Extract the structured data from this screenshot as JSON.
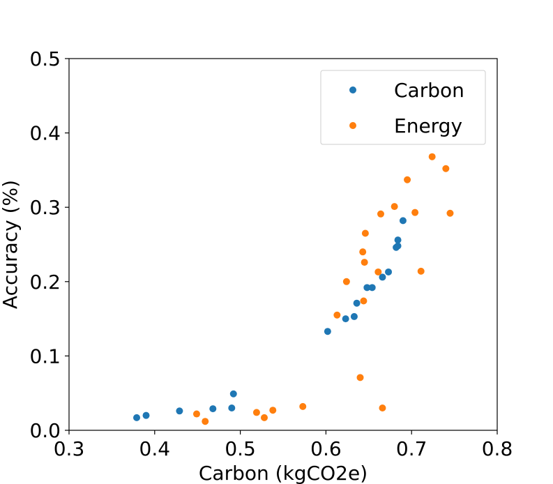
{
  "chart_data": {
    "type": "scatter",
    "title": "",
    "xlabel": "Carbon (kgCO2e)",
    "ylabel": "Accuracy (%)",
    "xlim": [
      0.3,
      0.8
    ],
    "ylim": [
      0.0,
      0.5
    ],
    "xticks": [
      "0.3",
      "0.4",
      "0.5",
      "0.6",
      "0.7",
      "0.8"
    ],
    "yticks": [
      "0.0",
      "0.1",
      "0.2",
      "0.3",
      "0.4",
      "0.5"
    ],
    "grid": false,
    "legend": "upper-right",
    "series": [
      {
        "name": "Carbon",
        "color": "#1f77b4",
        "points": [
          [
            0.379,
            0.017
          ],
          [
            0.39,
            0.02
          ],
          [
            0.429,
            0.026
          ],
          [
            0.468,
            0.029
          ],
          [
            0.49,
            0.03
          ],
          [
            0.492,
            0.049
          ],
          [
            0.602,
            0.133
          ],
          [
            0.623,
            0.15
          ],
          [
            0.633,
            0.153
          ],
          [
            0.636,
            0.171
          ],
          [
            0.648,
            0.192
          ],
          [
            0.654,
            0.192
          ],
          [
            0.666,
            0.206
          ],
          [
            0.673,
            0.213
          ],
          [
            0.682,
            0.246
          ],
          [
            0.684,
            0.248
          ],
          [
            0.684,
            0.256
          ],
          [
            0.69,
            0.282
          ]
        ]
      },
      {
        "name": "Energy",
        "color": "#ff7f0e",
        "points": [
          [
            0.449,
            0.022
          ],
          [
            0.459,
            0.012
          ],
          [
            0.519,
            0.024
          ],
          [
            0.528,
            0.017
          ],
          [
            0.538,
            0.027
          ],
          [
            0.573,
            0.032
          ],
          [
            0.613,
            0.155
          ],
          [
            0.624,
            0.2
          ],
          [
            0.64,
            0.071
          ],
          [
            0.643,
            0.24
          ],
          [
            0.644,
            0.174
          ],
          [
            0.645,
            0.226
          ],
          [
            0.646,
            0.265
          ],
          [
            0.661,
            0.213
          ],
          [
            0.664,
            0.291
          ],
          [
            0.666,
            0.03
          ],
          [
            0.68,
            0.301
          ],
          [
            0.695,
            0.337
          ],
          [
            0.704,
            0.293
          ],
          [
            0.711,
            0.214
          ],
          [
            0.724,
            0.368
          ],
          [
            0.74,
            0.352
          ],
          [
            0.745,
            0.292
          ]
        ]
      }
    ]
  }
}
